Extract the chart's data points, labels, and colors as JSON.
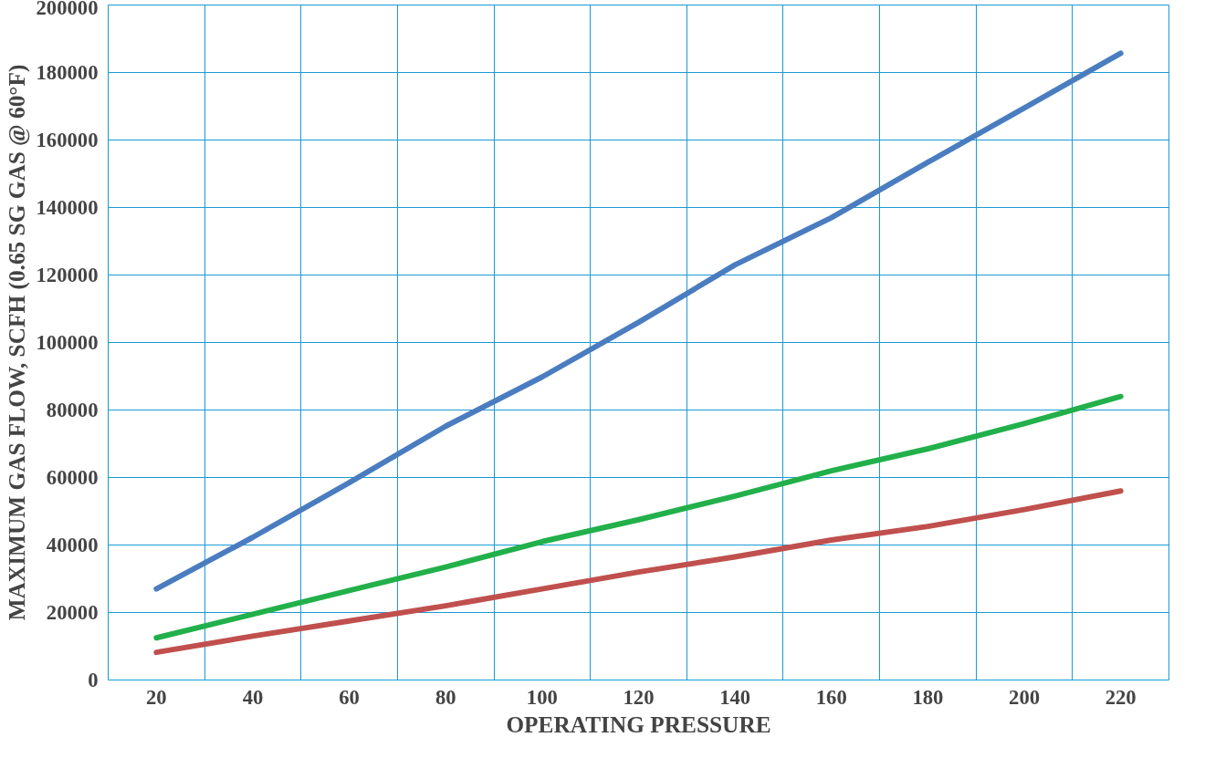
{
  "chart_data": {
    "type": "line",
    "xlabel": "OPERATING PRESSURE",
    "ylabel": "MAXIMUM GAS FLOW, SCFH (0.65 SG GAS @ 60°F)",
    "x": [
      20,
      40,
      60,
      80,
      100,
      120,
      140,
      160,
      180,
      200,
      220
    ],
    "series": [
      {
        "color": "#c0504d",
        "values": [
          8200,
          13000,
          17500,
          22000,
          27000,
          32000,
          36500,
          41500,
          45500,
          50500,
          56000
        ]
      },
      {
        "color": "#22b04a",
        "values": [
          12500,
          19500,
          26500,
          33500,
          41000,
          47500,
          54500,
          62000,
          68500,
          76000,
          84000
        ]
      },
      {
        "color": "#4a7dc0",
        "values": [
          27000,
          42300,
          58500,
          75200,
          89800,
          106000,
          123000,
          137000,
          153400,
          169500,
          185700
        ]
      }
    ],
    "xlim": [
      10,
      230
    ],
    "xticks": [
      {
        "value": 10,
        "label": null
      },
      20,
      {
        "value": 30,
        "label": null
      },
      40,
      {
        "value": 50,
        "label": null
      },
      60,
      {
        "value": 70,
        "label": null
      },
      80,
      {
        "value": 90,
        "label": null
      },
      100,
      {
        "value": 110,
        "label": null
      },
      120,
      {
        "value": 130,
        "label": null
      },
      140,
      {
        "value": 150,
        "label": null
      },
      160,
      {
        "value": 170,
        "label": null
      },
      180,
      {
        "value": 190,
        "label": null
      },
      200,
      {
        "value": 210,
        "label": null
      },
      220,
      {
        "value": 230,
        "label": null
      }
    ],
    "ylim": [
      0,
      200000
    ],
    "yticks": [
      0,
      20000,
      40000,
      60000,
      80000,
      100000,
      120000,
      140000,
      160000,
      180000,
      200000
    ],
    "grid": true,
    "marker": "none",
    "line_style": "solid"
  }
}
